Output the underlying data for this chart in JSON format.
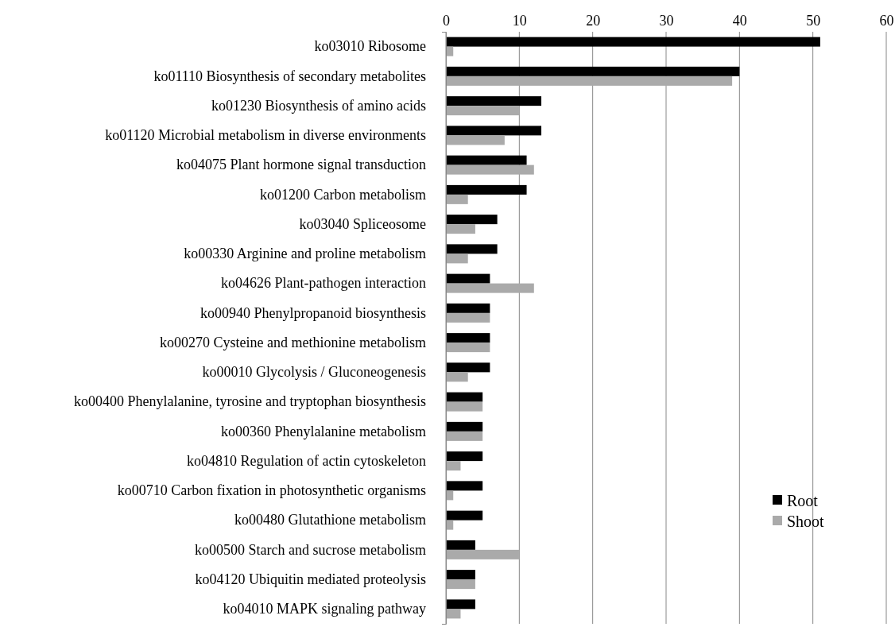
{
  "chart_data": {
    "type": "bar",
    "orientation": "horizontal",
    "categories": [
      "ko03010 Ribosome",
      "ko01110 Biosynthesis of secondary metabolites",
      "ko01230 Biosynthesis of amino acids",
      "ko01120 Microbial metabolism in diverse environments",
      "ko04075 Plant hormone signal transduction",
      "ko01200 Carbon metabolism",
      "ko03040 Spliceosome",
      "ko00330 Arginine and proline metabolism",
      "ko04626 Plant-pathogen interaction",
      "ko00940 Phenylpropanoid biosynthesis",
      "ko00270 Cysteine and methionine metabolism",
      "ko00010 Glycolysis / Gluconeogenesis",
      "ko00400 Phenylalanine, tyrosine and tryptophan biosynthesis",
      "ko00360 Phenylalanine metabolism",
      "ko04810 Regulation of actin cytoskeleton",
      "ko00710 Carbon fixation in photosynthetic organisms",
      "ko00480 Glutathione metabolism",
      "ko00500 Starch and sucrose metabolism",
      "ko04120 Ubiquitin mediated proteolysis",
      "ko04010 MAPK signaling pathway"
    ],
    "series": [
      {
        "name": "Root",
        "color": "#000000",
        "values": [
          51,
          40,
          13,
          13,
          11,
          11,
          7,
          7,
          6,
          6,
          6,
          6,
          5,
          5,
          5,
          5,
          5,
          4,
          4,
          4
        ]
      },
      {
        "name": "Shoot",
        "color": "#aaaaaa",
        "values": [
          1,
          39,
          10,
          8,
          12,
          3,
          4,
          3,
          12,
          6,
          6,
          3,
          5,
          5,
          2,
          1,
          1,
          10,
          4,
          2
        ]
      }
    ],
    "xlim": [
      0,
      60
    ],
    "xticks": [
      0,
      10,
      20,
      30,
      40,
      50,
      60
    ],
    "grid": "x",
    "legend": "bottom right"
  }
}
